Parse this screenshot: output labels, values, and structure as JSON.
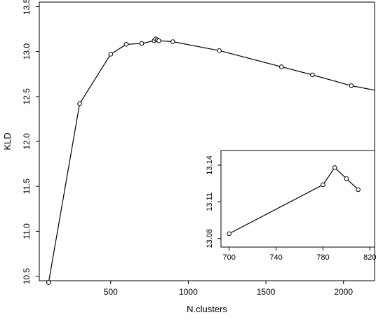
{
  "chart_data": [
    {
      "type": "line",
      "title": "",
      "xlabel": "N.clusters",
      "ylabel": "KLD",
      "xlim": [
        40,
        2200
      ],
      "ylim": [
        10.45,
        13.55
      ],
      "x_ticks": [
        500,
        1000,
        1500,
        2000
      ],
      "y_ticks": [
        10.5,
        11.0,
        11.5,
        12.0,
        12.5,
        13.0,
        13.5
      ],
      "x_tick_labels": [
        "500",
        "1000",
        "1500",
        "2000"
      ],
      "y_tick_labels": [
        "10.5",
        "11.0",
        "11.5",
        "12.0",
        "12.5",
        "13.0",
        "13.5"
      ],
      "grid": false,
      "series": [
        {
          "x": [
            100,
            300,
            500,
            600,
            700,
            780,
            790,
            800,
            810,
            900,
            1200,
            1600,
            1800,
            2050,
            2200
          ],
          "y": [
            10.43,
            12.42,
            12.97,
            13.08,
            13.09,
            13.12,
            13.14,
            13.13,
            13.12,
            13.11,
            13.01,
            12.83,
            12.74,
            12.62,
            12.57
          ]
        }
      ]
    },
    {
      "type": "line",
      "title": "",
      "xlabel": "",
      "ylabel": "",
      "xlim": [
        693,
        824
      ],
      "ylim": [
        13.073,
        13.152
      ],
      "x_ticks": [
        700,
        740,
        780,
        820
      ],
      "y_ticks": [
        13.08,
        13.11,
        13.14
      ],
      "x_tick_labels": [
        "700",
        "740",
        "780",
        "820"
      ],
      "y_tick_labels": [
        "13.08",
        "13.11",
        "13.14"
      ],
      "grid": false,
      "series": [
        {
          "x": [
            700,
            780,
            790,
            800,
            810
          ],
          "y": [
            13.084,
            13.124,
            13.138,
            13.129,
            13.12
          ]
        }
      ]
    }
  ]
}
